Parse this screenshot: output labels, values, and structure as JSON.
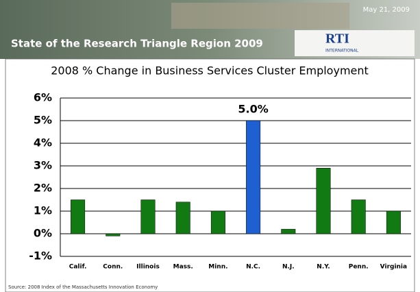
{
  "header": {
    "title": "State of the Research Triangle Region 2009",
    "date": "May 21, 2009",
    "logo": "RTI",
    "logo_subtitle": "INTERNATIONAL"
  },
  "chart_data": {
    "type": "bar",
    "title": "2008 % Change in Business Services Cluster Employment",
    "categories": [
      "Calif.",
      "Conn.",
      "Illinois",
      "Mass.",
      "Minn.",
      "N.C.",
      "N.J.",
      "N.Y.",
      "Penn.",
      "Virginia"
    ],
    "values": [
      1.5,
      -0.1,
      1.5,
      1.4,
      1.0,
      5.0,
      0.2,
      2.9,
      1.5,
      1.0
    ],
    "value_labels": [
      null,
      null,
      null,
      null,
      null,
      "5.0%",
      null,
      null,
      null,
      null
    ],
    "colors": [
      "#127a12",
      "#127a12",
      "#127a12",
      "#127a12",
      "#127a12",
      "#1e5fd2",
      "#127a12",
      "#127a12",
      "#127a12",
      "#127a12"
    ],
    "ylim": [
      -1,
      6
    ],
    "yticks": [
      {
        "value": -1,
        "label": "-1%"
      },
      {
        "value": 0,
        "label": "0%"
      },
      {
        "value": 1,
        "label": "1%"
      },
      {
        "value": 2,
        "label": "2%"
      },
      {
        "value": 3,
        "label": "3%"
      },
      {
        "value": 4,
        "label": "4%"
      },
      {
        "value": 5,
        "label": "5%"
      },
      {
        "value": 6,
        "label": "6%"
      }
    ],
    "grid": true
  },
  "footer": {
    "source": "Source: 2008 Index of the Massachusetts Innovation Economy"
  }
}
